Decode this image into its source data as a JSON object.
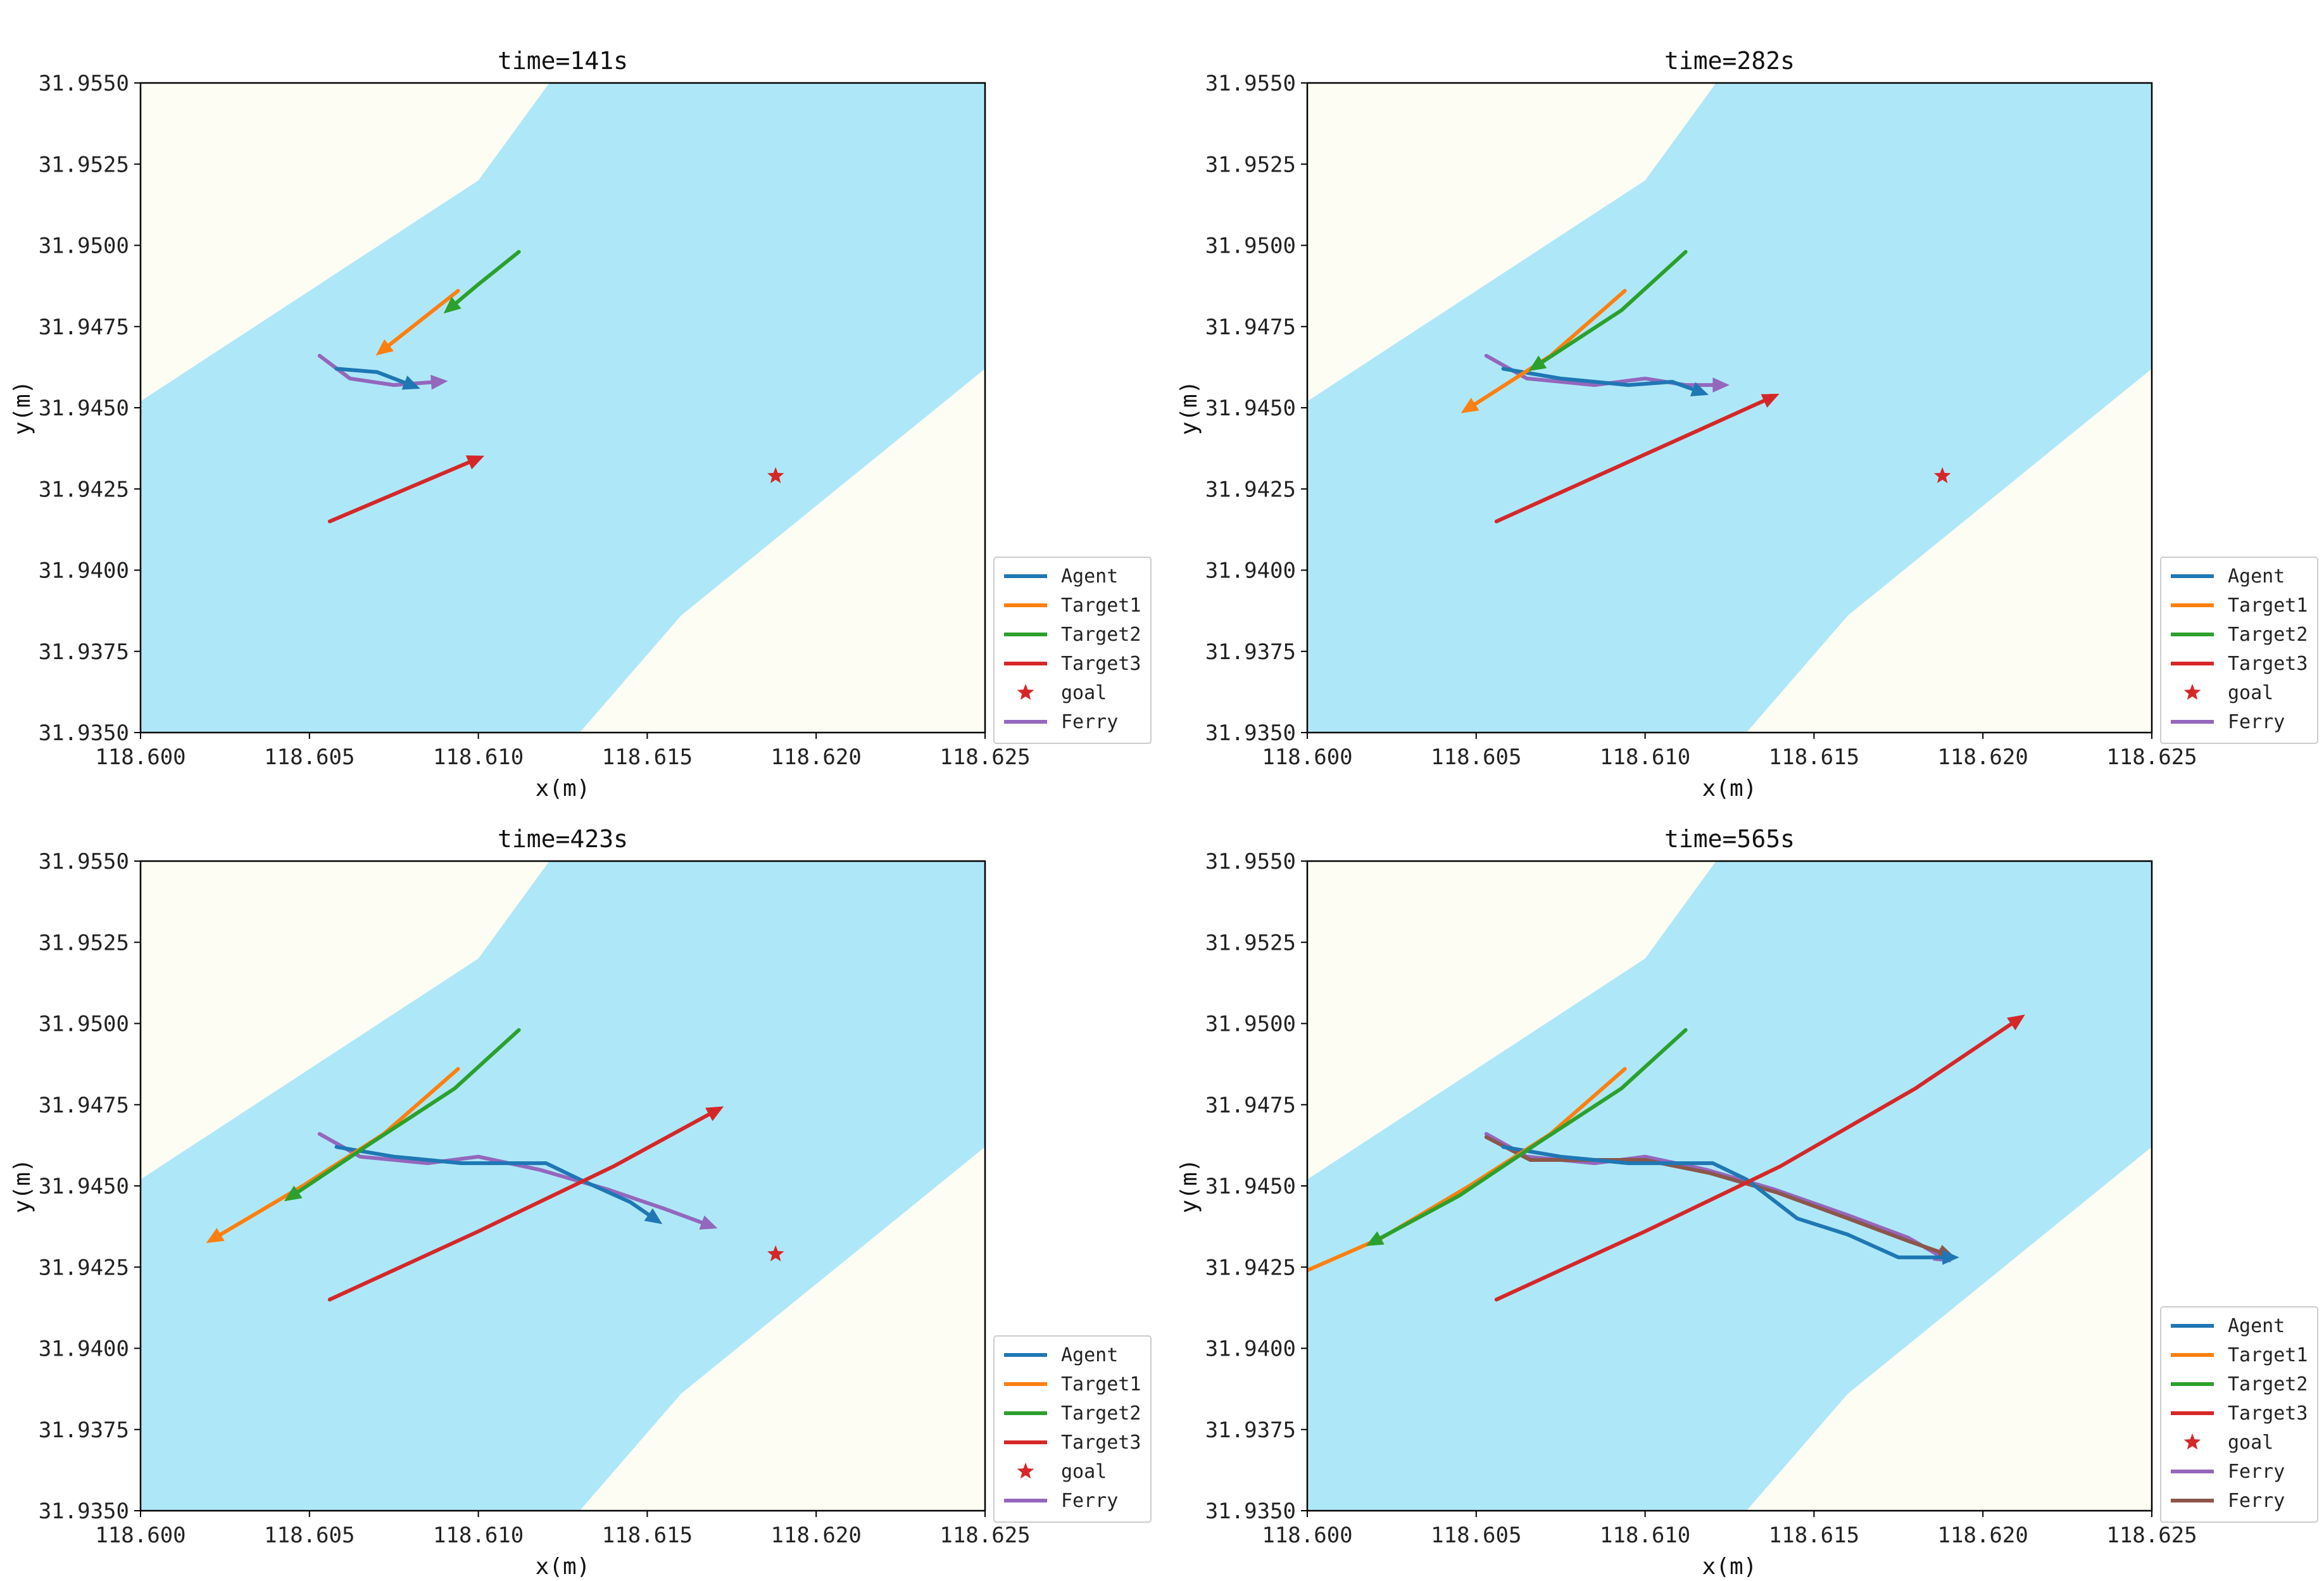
{
  "colors": {
    "water": "#aee8f8",
    "land": "#fefdf4",
    "Agent": "#1f77b4",
    "Target1": "#ff7f0e",
    "Target2": "#2ca02c",
    "Target3": "#d62728",
    "goal": "#d62728",
    "Ferry": "#9467bd",
    "Ferry2": "#8c564b"
  },
  "shared": {
    "xlabel": "x(m)",
    "ylabel": "y(m)",
    "xlim": [
      118.6,
      118.625
    ],
    "ylim": [
      31.935,
      31.955
    ],
    "xticks": [
      "118.600",
      "118.605",
      "118.610",
      "118.615",
      "118.620",
      "118.625"
    ],
    "xtick_values": [
      118.6,
      118.605,
      118.61,
      118.615,
      118.62,
      118.625
    ],
    "yticks": [
      "31.9550",
      "31.9525",
      "31.9500",
      "31.9475",
      "31.9450",
      "31.9425",
      "31.9400",
      "31.9375",
      "31.9350"
    ],
    "ytick_values": [
      31.955,
      31.9525,
      31.95,
      31.9475,
      31.945,
      31.9425,
      31.94,
      31.9375,
      31.935
    ],
    "water_polygon": [
      [
        118.6,
        31.9452
      ],
      [
        118.61,
        31.952
      ],
      [
        118.6121,
        31.955
      ],
      [
        118.625,
        31.955
      ],
      [
        118.625,
        31.9462
      ],
      [
        118.616,
        31.9386
      ],
      [
        118.613,
        31.935
      ],
      [
        118.6,
        31.935
      ]
    ]
  },
  "chart_data": [
    {
      "type": "line",
      "title": "time=141s",
      "xlabel": "x(m)",
      "ylabel": "y(m)",
      "legend": [
        "Agent",
        "Target1",
        "Target2",
        "Target3",
        "goal",
        "Ferry"
      ],
      "series": [
        {
          "name": "Ferry",
          "color_key": "Ferry",
          "x": [
            118.6053,
            118.6062,
            118.6075,
            118.6088
          ],
          "y": [
            31.9466,
            31.9459,
            31.9457,
            31.9458
          ],
          "marker": "end"
        },
        {
          "name": "Agent",
          "color_key": "Agent",
          "x": [
            118.6058,
            118.607,
            118.608
          ],
          "y": [
            31.9462,
            31.9461,
            31.9457
          ],
          "marker": "end"
        },
        {
          "name": "Target1",
          "color_key": "Target1",
          "x": [
            118.6094,
            118.6072
          ],
          "y": [
            31.9486,
            31.9468
          ],
          "marker": "end"
        },
        {
          "name": "Target2",
          "color_key": "Target2",
          "x": [
            118.6112,
            118.61,
            118.6092
          ],
          "y": [
            31.9498,
            31.9488,
            31.9481
          ],
          "marker": "end"
        },
        {
          "name": "Target3",
          "color_key": "Target3",
          "x": [
            118.6056,
            118.6099
          ],
          "y": [
            31.9415,
            31.9434
          ],
          "marker": "end"
        }
      ],
      "goal": {
        "x": 118.6188,
        "y": 31.9429
      }
    },
    {
      "type": "line",
      "title": "time=282s",
      "xlabel": "x(m)",
      "ylabel": "y(m)",
      "legend": [
        "Agent",
        "Target1",
        "Target2",
        "Target3",
        "goal",
        "Ferry"
      ],
      "series": [
        {
          "name": "Ferry",
          "color_key": "Ferry",
          "x": [
            118.6053,
            118.6065,
            118.6085,
            118.61,
            118.6112,
            118.6122
          ],
          "y": [
            31.9466,
            31.9459,
            31.9457,
            31.9459,
            31.9457,
            31.9457
          ],
          "marker": "end"
        },
        {
          "name": "Agent",
          "color_key": "Agent",
          "x": [
            118.6058,
            118.6075,
            118.6095,
            118.6108,
            118.6116
          ],
          "y": [
            31.9462,
            31.9459,
            31.9457,
            31.9458,
            31.9455
          ],
          "marker": "end"
        },
        {
          "name": "Target1",
          "color_key": "Target1",
          "x": [
            118.6094,
            118.6072,
            118.6048
          ],
          "y": [
            31.9486,
            31.9466,
            31.945
          ],
          "marker": "end"
        },
        {
          "name": "Target2",
          "color_key": "Target2",
          "x": [
            118.6112,
            118.6093,
            118.6068
          ],
          "y": [
            31.9498,
            31.948,
            31.9463
          ],
          "marker": "end"
        },
        {
          "name": "Target3",
          "color_key": "Target3",
          "x": [
            118.6056,
            118.6137
          ],
          "y": [
            31.9415,
            31.9453
          ],
          "marker": "end"
        }
      ],
      "goal": {
        "x": 118.6188,
        "y": 31.9429
      }
    },
    {
      "type": "line",
      "title": "time=423s",
      "xlabel": "x(m)",
      "ylabel": "y(m)",
      "legend": [
        "Agent",
        "Target1",
        "Target2",
        "Target3",
        "goal",
        "Ferry"
      ],
      "series": [
        {
          "name": "Ferry",
          "color_key": "Ferry",
          "x": [
            118.6053,
            118.6065,
            118.6085,
            118.61,
            118.6118,
            118.6138,
            118.6155,
            118.6168
          ],
          "y": [
            31.9466,
            31.9459,
            31.9457,
            31.9459,
            31.9455,
            31.9449,
            31.9443,
            31.9438
          ],
          "marker": "end"
        },
        {
          "name": "Agent",
          "color_key": "Agent",
          "x": [
            118.6058,
            118.6075,
            118.6095,
            118.612,
            118.613,
            118.6145,
            118.6152
          ],
          "y": [
            31.9462,
            31.9459,
            31.9457,
            31.9457,
            31.9452,
            31.9445,
            31.944
          ],
          "marker": "end"
        },
        {
          "name": "Target1",
          "color_key": "Target1",
          "x": [
            118.6094,
            118.6072,
            118.6048,
            118.6022
          ],
          "y": [
            31.9486,
            31.9466,
            31.945,
            31.9434
          ],
          "marker": "end"
        },
        {
          "name": "Target2",
          "color_key": "Target2",
          "x": [
            118.6112,
            118.6093,
            118.6068,
            118.6045
          ],
          "y": [
            31.9498,
            31.948,
            31.9463,
            31.9447
          ],
          "marker": "end"
        },
        {
          "name": "Target3",
          "color_key": "Target3",
          "x": [
            118.6056,
            118.61,
            118.614,
            118.617
          ],
          "y": [
            31.9415,
            31.9436,
            31.9456,
            31.9473
          ],
          "marker": "end"
        }
      ],
      "goal": {
        "x": 118.6188,
        "y": 31.9429
      }
    },
    {
      "type": "line",
      "title": "time=565s",
      "xlabel": "x(m)",
      "ylabel": "y(m)",
      "legend": [
        "Agent",
        "Target1",
        "Target2",
        "Target3",
        "goal",
        "Ferry",
        "Ferry"
      ],
      "series": [
        {
          "name": "Ferry",
          "color_key": "Ferry",
          "x": [
            118.6053,
            118.6065,
            118.6085,
            118.61,
            118.6118,
            118.6138,
            118.616,
            118.6178,
            118.6188
          ],
          "y": [
            31.9466,
            31.9459,
            31.9457,
            31.9459,
            31.9455,
            31.9449,
            31.9441,
            31.9434,
            31.9428
          ],
          "marker": "end"
        },
        {
          "name": "Ferry",
          "color_key": "Ferry2",
          "x": [
            118.6053,
            118.6066,
            118.6085,
            118.61,
            118.6119,
            118.6139,
            118.616,
            118.6178,
            118.6189
          ],
          "y": [
            31.9465,
            31.9458,
            31.9458,
            31.9458,
            31.9454,
            31.9448,
            31.944,
            31.9433,
            31.9429
          ],
          "marker": "end"
        },
        {
          "name": "Agent",
          "color_key": "Agent",
          "x": [
            118.6058,
            118.6075,
            118.6095,
            118.612,
            118.613,
            118.6145,
            118.616,
            118.6175,
            118.619
          ],
          "y": [
            31.9462,
            31.9459,
            31.9457,
            31.9457,
            31.9452,
            31.944,
            31.9435,
            31.9428,
            31.9428
          ],
          "marker": "end"
        },
        {
          "name": "Target1",
          "color_key": "Target1",
          "x": [
            118.6094,
            118.6072,
            118.6048,
            118.6022,
            118.6
          ],
          "y": [
            31.9486,
            31.9466,
            31.945,
            31.9434,
            31.9424
          ],
          "marker": "none"
        },
        {
          "name": "Target2",
          "color_key": "Target2",
          "x": [
            118.6112,
            118.6093,
            118.6068,
            118.6045,
            118.602
          ],
          "y": [
            31.9498,
            31.948,
            31.9463,
            31.9447,
            31.9433
          ],
          "marker": "end"
        },
        {
          "name": "Target3",
          "color_key": "Target3",
          "x": [
            118.6056,
            118.61,
            118.614,
            118.618,
            118.621
          ],
          "y": [
            31.9415,
            31.9436,
            31.9456,
            31.948,
            31.9501
          ],
          "marker": "end"
        }
      ],
      "goal": null
    }
  ]
}
